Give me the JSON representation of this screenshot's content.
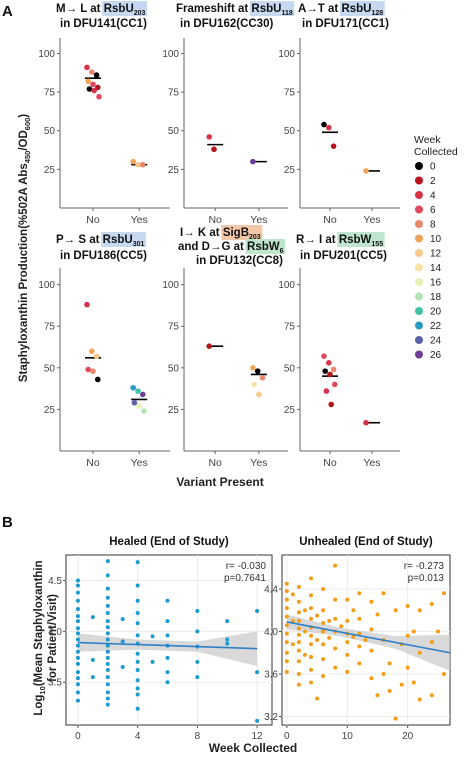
{
  "panel_labels": {
    "a": "A",
    "b": "B"
  },
  "panel_a": {
    "ylabel": "Staphyloxanthin Production(%502A Abs450/OD600)",
    "ylabel_main": "Staphyloxanthin Production(%502A Abs",
    "ylabel_sub1": "450",
    "ylabel_mid": "/OD",
    "ylabel_sub2": "600",
    "ylabel_end": ")",
    "xlabel": "Variant Present",
    "categories": [
      "No",
      "Yes"
    ],
    "yticks": [
      "100",
      "75",
      "50",
      "25"
    ],
    "legend_title_1": "Week",
    "legend_title_2": "Collected"
  },
  "legend": [
    {
      "week": "0",
      "color": "#000000"
    },
    {
      "week": "2",
      "color": "#b5161b"
    },
    {
      "week": "4",
      "color": "#d6334a"
    },
    {
      "week": "6",
      "color": "#e04a5e"
    },
    {
      "week": "8",
      "color": "#e9866c"
    },
    {
      "week": "10",
      "color": "#f0a45a"
    },
    {
      "week": "12",
      "color": "#f6c98c"
    },
    {
      "week": "14",
      "color": "#f5e3a8"
    },
    {
      "week": "16",
      "color": "#e9f0b4"
    },
    {
      "week": "18",
      "color": "#b4e3b2"
    },
    {
      "week": "20",
      "color": "#3fc1a5"
    },
    {
      "week": "22",
      "color": "#2a9ac4"
    },
    {
      "week": "24",
      "color": "#5a63a8"
    },
    {
      "week": "26",
      "color": "#6b3f98"
    }
  ],
  "panel_b": {
    "ylabel_line1": "Log10(Mean Staphyloxanthin",
    "ylabel_log": "Log",
    "ylabel_sub": "10",
    "ylabel_rest": "(Mean Staphyloxanthin",
    "ylabel_line2": "for Patient/Visit)",
    "xlabel": "Week Collected"
  },
  "chart_data": [
    {
      "type": "scatter",
      "panel": "A1",
      "title_pre": "M→ L at ",
      "gene": "RsbU",
      "gene_sub": "203",
      "strain": "in DFU141(CC1)",
      "highlight": "#c6d9f0",
      "ylim": [
        0,
        110
      ],
      "categories": [
        "No",
        "Yes"
      ],
      "medians": [
        84,
        28
      ],
      "points": [
        {
          "cat": "No",
          "y": 91,
          "week": 4
        },
        {
          "cat": "No",
          "y": 88,
          "week": 8
        },
        {
          "cat": "No",
          "y": 86,
          "week": 0
        },
        {
          "cat": "No",
          "y": 82,
          "week": 10
        },
        {
          "cat": "No",
          "y": 80,
          "week": 6
        },
        {
          "cat": "No",
          "y": 78,
          "week": 2
        },
        {
          "cat": "No",
          "y": 77,
          "week": 0
        },
        {
          "cat": "No",
          "y": 76,
          "week": 4
        },
        {
          "cat": "No",
          "y": 72,
          "week": 6
        },
        {
          "cat": "Yes",
          "y": 30,
          "week": 10
        },
        {
          "cat": "Yes",
          "y": 28,
          "week": 12
        },
        {
          "cat": "Yes",
          "y": 28,
          "week": 8
        }
      ]
    },
    {
      "type": "scatter",
      "panel": "A2",
      "title_pre": "Frameshift at ",
      "gene": "RsbU",
      "gene_sub": "118",
      "strain": "in DFU162(CC30)",
      "highlight": "#c6d9f0",
      "ylim": [
        0,
        110
      ],
      "categories": [
        "No",
        "Yes"
      ],
      "medians": [
        41,
        30
      ],
      "points": [
        {
          "cat": "No",
          "y": 46,
          "week": 4
        },
        {
          "cat": "No",
          "y": 38,
          "week": 2
        },
        {
          "cat": "Yes",
          "y": 30,
          "week": 26
        }
      ]
    },
    {
      "type": "scatter",
      "panel": "A3",
      "title_pre": "A→T at ",
      "gene": "RsbU",
      "gene_sub": "128",
      "strain": "in DFU171(CC1)",
      "highlight": "#c6d9f0",
      "ylim": [
        0,
        110
      ],
      "categories": [
        "No",
        "Yes"
      ],
      "medians": [
        49,
        24
      ],
      "points": [
        {
          "cat": "No",
          "y": 54,
          "week": 0
        },
        {
          "cat": "No",
          "y": 52,
          "week": 4
        },
        {
          "cat": "No",
          "y": 40,
          "week": 2
        },
        {
          "cat": "Yes",
          "y": 24,
          "week": 10
        }
      ]
    },
    {
      "type": "scatter",
      "panel": "A4",
      "title_pre": "P→ S at ",
      "gene": "RsbU",
      "gene_sub": "301",
      "strain": "in DFU186(CC5)",
      "highlight": "#c6d9f0",
      "ylim": [
        0,
        110
      ],
      "categories": [
        "No",
        "Yes"
      ],
      "medians": [
        56,
        31
      ],
      "points": [
        {
          "cat": "No",
          "y": 88,
          "week": 4
        },
        {
          "cat": "No",
          "y": 60,
          "week": 10
        },
        {
          "cat": "No",
          "y": 57,
          "week": 12
        },
        {
          "cat": "No",
          "y": 49,
          "week": 6
        },
        {
          "cat": "No",
          "y": 48,
          "week": 8
        },
        {
          "cat": "No",
          "y": 43,
          "week": 0
        },
        {
          "cat": "Yes",
          "y": 38,
          "week": 22
        },
        {
          "cat": "Yes",
          "y": 36,
          "week": 20
        },
        {
          "cat": "Yes",
          "y": 34,
          "week": 26
        },
        {
          "cat": "Yes",
          "y": 29,
          "week": 24
        },
        {
          "cat": "Yes",
          "y": 27,
          "week": 16
        },
        {
          "cat": "Yes",
          "y": 24,
          "week": 18
        }
      ]
    },
    {
      "type": "scatter",
      "panel": "A5",
      "title_l1_pre": "I→ K at ",
      "gene": "SigB",
      "gene_sub": "203",
      "title_l2_pre": "and D→G at ",
      "gene2": "RsbW",
      "gene2_sub": "6",
      "strain": "in DFU132(CC8)",
      "highlight": "#f4c7a8",
      "highlight2": "#bfe6cc",
      "ylim": [
        0,
        110
      ],
      "categories": [
        "No",
        "Yes"
      ],
      "medians": [
        63,
        46
      ],
      "points": [
        {
          "cat": "No",
          "y": 63,
          "week": 2
        },
        {
          "cat": "Yes",
          "y": 50,
          "week": 10
        },
        {
          "cat": "Yes",
          "y": 48,
          "week": 0
        },
        {
          "cat": "Yes",
          "y": 44,
          "week": 8
        },
        {
          "cat": "Yes",
          "y": 40,
          "week": 14
        },
        {
          "cat": "Yes",
          "y": 34,
          "week": 12
        }
      ]
    },
    {
      "type": "scatter",
      "panel": "A6",
      "title_pre": "R→ I at ",
      "gene": "RsbW",
      "gene_sub": "155",
      "strain": "in DFU201(CC5)",
      "highlight": "#bfe6cc",
      "ylim": [
        0,
        110
      ],
      "categories": [
        "No",
        "Yes"
      ],
      "medians": [
        45,
        17
      ],
      "points": [
        {
          "cat": "No",
          "y": 57,
          "week": 6
        },
        {
          "cat": "No",
          "y": 53,
          "week": 4
        },
        {
          "cat": "No",
          "y": 49,
          "week": 8
        },
        {
          "cat": "No",
          "y": 48,
          "week": 0
        },
        {
          "cat": "No",
          "y": 46,
          "week": 2
        },
        {
          "cat": "No",
          "y": 40,
          "week": 6
        },
        {
          "cat": "No",
          "y": 36,
          "week": 4
        },
        {
          "cat": "No",
          "y": 28,
          "week": 2
        },
        {
          "cat": "Yes",
          "y": 17,
          "week": 4
        }
      ]
    },
    {
      "type": "scatter",
      "panel": "B1",
      "title": "Healed (End of Study)",
      "annotation_r": "r= -0.030",
      "annotation_p": "p=0.7641",
      "color": "#1b9ad1",
      "line_color": "#2f7fc7",
      "xlim": [
        -0.8,
        13
      ],
      "ylim": [
        3.08,
        4.75
      ],
      "xticks": [
        0,
        4,
        8,
        12
      ],
      "yticks": [
        3.5,
        4.0,
        4.5
      ],
      "ytick_labels": [
        "3.5",
        "4.0",
        "4.5"
      ],
      "fit": {
        "x": [
          0,
          12
        ],
        "y": [
          3.89,
          3.83
        ]
      },
      "band_halfwidth": [
        0.09,
        0.05,
        0.05,
        0.17
      ],
      "points": [
        [
          0,
          4.5
        ],
        [
          0,
          4.45
        ],
        [
          0,
          4.38
        ],
        [
          0,
          4.3
        ],
        [
          0,
          4.22
        ],
        [
          0,
          4.15
        ],
        [
          0,
          4.1
        ],
        [
          0,
          4.03
        ],
        [
          0,
          3.98
        ],
        [
          0,
          3.92
        ],
        [
          0,
          3.86
        ],
        [
          0,
          3.8
        ],
        [
          0,
          3.74
        ],
        [
          0,
          3.68
        ],
        [
          0,
          3.6
        ],
        [
          0,
          3.54
        ],
        [
          0,
          3.48
        ],
        [
          0,
          3.4
        ],
        [
          0,
          3.32
        ],
        [
          1,
          4.14
        ],
        [
          1,
          3.72
        ],
        [
          1,
          3.55
        ],
        [
          2,
          4.69
        ],
        [
          2,
          4.55
        ],
        [
          2,
          4.42
        ],
        [
          2,
          4.33
        ],
        [
          2,
          4.25
        ],
        [
          2,
          4.18
        ],
        [
          2,
          4.1
        ],
        [
          2,
          4.04
        ],
        [
          2,
          3.98
        ],
        [
          2,
          3.92
        ],
        [
          2,
          3.86
        ],
        [
          2,
          3.8
        ],
        [
          2,
          3.74
        ],
        [
          2,
          3.68
        ],
        [
          2,
          3.62
        ],
        [
          2,
          3.55
        ],
        [
          2,
          3.48
        ],
        [
          2,
          3.4
        ],
        [
          2,
          3.34
        ],
        [
          2,
          3.28
        ],
        [
          3,
          4.12
        ],
        [
          3,
          3.9
        ],
        [
          3,
          3.65
        ],
        [
          4,
          4.68
        ],
        [
          4,
          4.45
        ],
        [
          4,
          4.3
        ],
        [
          4,
          4.18
        ],
        [
          4,
          4.08
        ],
        [
          4,
          3.96
        ],
        [
          4,
          3.88
        ],
        [
          4,
          3.78
        ],
        [
          4,
          3.7
        ],
        [
          4,
          3.62
        ],
        [
          4,
          3.52
        ],
        [
          4,
          3.44
        ],
        [
          4,
          3.38
        ],
        [
          4,
          3.24
        ],
        [
          5,
          3.95
        ],
        [
          5,
          3.7
        ],
        [
          6,
          4.3
        ],
        [
          6,
          4.1
        ],
        [
          6,
          3.96
        ],
        [
          6,
          3.86
        ],
        [
          6,
          3.74
        ],
        [
          6,
          3.6
        ],
        [
          6,
          3.5
        ],
        [
          8,
          4.2
        ],
        [
          8,
          4.0
        ],
        [
          8,
          3.85
        ],
        [
          8,
          3.7
        ],
        [
          8,
          3.55
        ],
        [
          10,
          4.1
        ],
        [
          10,
          3.92
        ],
        [
          10,
          3.88
        ],
        [
          12,
          4.2
        ],
        [
          12,
          3.6
        ],
        [
          12,
          3.12
        ]
      ]
    },
    {
      "type": "scatter",
      "panel": "B2",
      "title": "Unhealed (End of Study)",
      "annotation_r": "r= -0.273",
      "annotation_p": "p=0.013",
      "color": "#f39c18",
      "line_color": "#2f7fc7",
      "xlim": [
        -0.8,
        27
      ],
      "ylim": [
        3.12,
        4.72
      ],
      "xticks": [
        0,
        10,
        20
      ],
      "yticks": [
        3.2,
        3.6,
        4.0,
        4.4
      ],
      "ytick_labels": [
        "3.2",
        "3.6",
        "4.0",
        "4.4"
      ],
      "fit": {
        "x": [
          0,
          27
        ],
        "y": [
          4.09,
          3.8
        ]
      },
      "band_halfwidth": [
        0.07,
        0.04,
        0.06,
        0.17
      ],
      "points": [
        [
          0,
          4.45
        ],
        [
          0,
          4.38
        ],
        [
          0,
          4.3
        ],
        [
          0,
          4.22
        ],
        [
          0,
          4.14
        ],
        [
          0,
          4.06
        ],
        [
          0,
          3.98
        ],
        [
          0,
          3.9
        ],
        [
          0,
          3.8
        ],
        [
          0,
          3.72
        ],
        [
          0,
          3.62
        ],
        [
          1,
          4.35
        ],
        [
          1,
          4.1
        ],
        [
          1,
          3.88
        ],
        [
          2,
          4.42
        ],
        [
          2,
          4.28
        ],
        [
          2,
          4.18
        ],
        [
          2,
          4.1
        ],
        [
          2,
          4.03
        ],
        [
          2,
          3.97
        ],
        [
          2,
          3.9
        ],
        [
          2,
          3.82
        ],
        [
          2,
          3.72
        ],
        [
          2,
          3.6
        ],
        [
          2,
          3.5
        ],
        [
          3,
          4.2
        ],
        [
          3,
          4.0
        ],
        [
          3,
          3.78
        ],
        [
          4,
          4.5
        ],
        [
          4,
          4.34
        ],
        [
          4,
          4.22
        ],
        [
          4,
          4.12
        ],
        [
          4,
          4.04
        ],
        [
          4,
          3.96
        ],
        [
          4,
          3.88
        ],
        [
          4,
          3.76
        ],
        [
          4,
          3.64
        ],
        [
          4,
          3.52
        ],
        [
          5,
          4.15
        ],
        [
          5,
          3.92
        ],
        [
          5,
          3.37
        ],
        [
          6,
          4.4
        ],
        [
          6,
          4.2
        ],
        [
          6,
          4.08
        ],
        [
          6,
          4.0
        ],
        [
          6,
          3.88
        ],
        [
          6,
          3.74
        ],
        [
          6,
          3.58
        ],
        [
          7,
          4.1
        ],
        [
          7,
          3.94
        ],
        [
          8,
          4.62
        ],
        [
          8,
          4.3
        ],
        [
          8,
          4.12
        ],
        [
          8,
          4.0
        ],
        [
          8,
          3.84
        ],
        [
          8,
          3.66
        ],
        [
          9,
          4.05
        ],
        [
          10,
          4.3
        ],
        [
          10,
          4.1
        ],
        [
          10,
          3.98
        ],
        [
          10,
          3.9
        ],
        [
          10,
          3.78
        ],
        [
          10,
          3.62
        ],
        [
          11,
          4.2
        ],
        [
          11,
          3.95
        ],
        [
          12,
          4.36
        ],
        [
          12,
          4.12
        ],
        [
          12,
          3.98
        ],
        [
          12,
          3.86
        ],
        [
          12,
          3.7
        ],
        [
          13,
          3.92
        ],
        [
          14,
          4.28
        ],
        [
          14,
          4.02
        ],
        [
          14,
          3.82
        ],
        [
          14,
          3.56
        ],
        [
          15,
          4.16
        ],
        [
          15,
          3.4
        ],
        [
          16,
          4.36
        ],
        [
          16,
          3.92
        ],
        [
          16,
          3.6
        ],
        [
          17,
          3.7
        ],
        [
          17,
          3.44
        ],
        [
          18,
          4.2
        ],
        [
          18,
          3.18
        ],
        [
          19,
          3.88
        ],
        [
          19,
          3.5
        ],
        [
          20,
          4.24
        ],
        [
          20,
          3.96
        ],
        [
          20,
          3.66
        ],
        [
          21,
          4.0
        ],
        [
          21,
          3.52
        ],
        [
          22,
          4.2
        ],
        [
          22,
          3.8
        ],
        [
          22,
          3.36
        ],
        [
          24,
          4.26
        ],
        [
          24,
          3.9
        ],
        [
          24,
          3.4
        ],
        [
          25,
          4.0
        ],
        [
          26,
          4.36
        ],
        [
          26,
          3.6
        ]
      ]
    }
  ]
}
